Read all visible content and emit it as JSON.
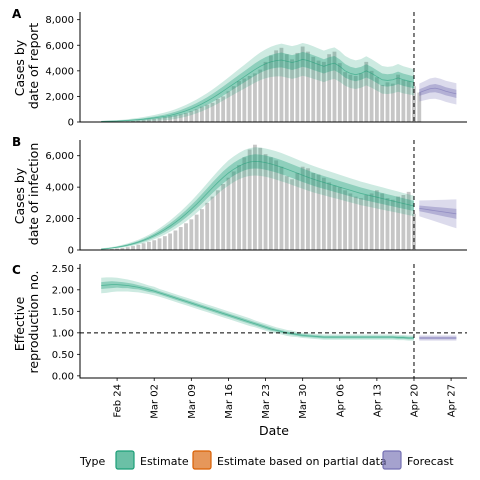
{
  "chart_data": [
    {
      "panel": "A",
      "type": "bar",
      "ylabel": [
        "Cases by",
        "date of report"
      ],
      "ylim": [
        0,
        8600
      ],
      "yticks": [
        0,
        2000,
        4000,
        6000,
        8000
      ],
      "ytick_labels": [
        "0",
        "2,000",
        "4,000",
        "6,000",
        "8,000"
      ],
      "bar_start_date": "2020-02-21",
      "bar_values": [
        5,
        10,
        15,
        25,
        40,
        60,
        80,
        110,
        150,
        200,
        250,
        300,
        380,
        450,
        520,
        600,
        700,
        850,
        1000,
        1200,
        1350,
        1500,
        1800,
        2000,
        2400,
        2800,
        3200,
        3400,
        3600,
        3800,
        4100,
        4700,
        5200,
        5600,
        5800,
        5300,
        4900,
        5400,
        5900,
        5500,
        5100,
        4800,
        4700,
        5300,
        5500,
        4600,
        3900,
        3700,
        3600,
        3800,
        4700,
        4000,
        3500,
        2900,
        3100,
        3000,
        3700,
        3300,
        3200,
        2800,
        2300
      ],
      "estimate": {
        "start_date": "2020-02-21",
        "median": [
          50,
          60,
          70,
          80,
          100,
          120,
          150,
          180,
          220,
          270,
          320,
          380,
          440,
          520,
          620,
          740,
          880,
          1040,
          1220,
          1420,
          1640,
          1880,
          2140,
          2420,
          2700,
          2980,
          3260,
          3540,
          3820,
          4100,
          4350,
          4550,
          4700,
          4800,
          4850,
          4750,
          4650,
          4750,
          4900,
          4800,
          4650,
          4500,
          4350,
          4500,
          4600,
          4350,
          4000,
          3800,
          3700,
          3800,
          4000,
          3800,
          3550,
          3300,
          3250,
          3300,
          3450,
          3300,
          3200,
          3100
        ],
        "inner_width": [
          20,
          25,
          30,
          35,
          40,
          45,
          55,
          65,
          75,
          90,
          100,
          120,
          140,
          160,
          180,
          200,
          220,
          240,
          260,
          280,
          300,
          320,
          340,
          360,
          380,
          400,
          420,
          440,
          460,
          480,
          500,
          520,
          540,
          560,
          580,
          580,
          580,
          580,
          580,
          580,
          580,
          570,
          560,
          560,
          560,
          550,
          530,
          520,
          510,
          510,
          520,
          510,
          500,
          490,
          480,
          480,
          490,
          480,
          470,
          460
        ],
        "outer_width": [
          40,
          50,
          60,
          70,
          80,
          100,
          120,
          140,
          170,
          200,
          230,
          260,
          300,
          340,
          380,
          420,
          460,
          500,
          540,
          580,
          620,
          660,
          700,
          740,
          780,
          830,
          880,
          930,
          980,
          1030,
          1080,
          1130,
          1180,
          1230,
          1280,
          1280,
          1280,
          1280,
          1280,
          1280,
          1270,
          1250,
          1230,
          1230,
          1230,
          1210,
          1170,
          1140,
          1120,
          1120,
          1140,
          1120,
          1100,
          1080,
          1060,
          1060,
          1080,
          1060,
          1040,
          1020
        ]
      },
      "forecast": {
        "start_date": "2020-04-21",
        "median": [
          2300,
          2450,
          2600,
          2650,
          2550,
          2400,
          2300,
          2200
        ],
        "inner_width": [
          260,
          280,
          300,
          320,
          320,
          320,
          320,
          320
        ],
        "outer_width": [
          700,
          750,
          800,
          830,
          830,
          830,
          830,
          830
        ]
      }
    },
    {
      "panel": "B",
      "type": "bar",
      "ylabel": [
        "Cases by",
        "date of infection"
      ],
      "ylim": [
        0,
        7000
      ],
      "yticks": [
        0,
        2000,
        4000,
        6000
      ],
      "ytick_labels": [
        "0",
        "2,000",
        "4,000",
        "6,000"
      ],
      "bar_start_date": "2020-02-21",
      "bar_values": [
        20,
        40,
        60,
        90,
        130,
        180,
        250,
        330,
        430,
        520,
        620,
        740,
        880,
        1050,
        1240,
        1460,
        1700,
        1950,
        2250,
        2600,
        3000,
        3400,
        3800,
        4200,
        4600,
        5000,
        5400,
        5900,
        6400,
        6700,
        6500,
        6100,
        5900,
        5700,
        5300,
        4700,
        4500,
        4900,
        5300,
        5200,
        4900,
        4800,
        4600,
        4300,
        4100,
        4000,
        3800,
        3600,
        3400,
        3300,
        3500,
        3600,
        3800,
        3600,
        3300,
        3200,
        3400,
        3500,
        3700,
        2300
      ],
      "estimate": {
        "start_date": "2020-02-21",
        "median": [
          60,
          90,
          130,
          180,
          240,
          310,
          400,
          500,
          620,
          760,
          920,
          1100,
          1300,
          1520,
          1760,
          2020,
          2300,
          2600,
          2920,
          3260,
          3610,
          3960,
          4300,
          4620,
          4900,
          5140,
          5340,
          5500,
          5600,
          5640,
          5620,
          5560,
          5480,
          5380,
          5270,
          5150,
          5020,
          4890,
          4760,
          4630,
          4510,
          4400,
          4300,
          4200,
          4100,
          4000,
          3900,
          3800,
          3700,
          3600,
          3520,
          3440,
          3360,
          3280,
          3200,
          3120,
          3040,
          2960,
          2880,
          2800
        ],
        "inner_width": [
          20,
          25,
          30,
          35,
          45,
          55,
          65,
          75,
          90,
          105,
          120,
          140,
          160,
          180,
          200,
          220,
          240,
          260,
          280,
          300,
          320,
          340,
          360,
          380,
          400,
          410,
          420,
          430,
          440,
          450,
          450,
          450,
          450,
          450,
          450,
          445,
          440,
          435,
          430,
          425,
          420,
          415,
          410,
          405,
          400,
          395,
          390,
          385,
          380,
          375,
          370,
          365,
          360,
          355,
          350,
          345,
          340,
          335,
          330,
          325
        ],
        "outer_width": [
          40,
          50,
          60,
          70,
          90,
          110,
          130,
          150,
          180,
          210,
          240,
          280,
          320,
          360,
          400,
          440,
          480,
          520,
          560,
          600,
          640,
          680,
          720,
          760,
          800,
          820,
          840,
          860,
          880,
          900,
          900,
          900,
          900,
          900,
          900,
          890,
          880,
          870,
          860,
          850,
          840,
          830,
          820,
          810,
          800,
          790,
          780,
          770,
          760,
          750,
          740,
          730,
          720,
          710,
          700,
          690,
          680,
          670,
          660,
          650
        ]
      },
      "forecast": {
        "start_date": "2020-04-21",
        "median": [
          2650,
          2600,
          2550,
          2500,
          2450,
          2400,
          2350,
          2300
        ],
        "inner_width": [
          180,
          200,
          220,
          240,
          260,
          280,
          300,
          320
        ],
        "outer_width": [
          500,
          560,
          620,
          680,
          740,
          800,
          860,
          920
        ]
      }
    },
    {
      "panel": "C",
      "type": "line",
      "ylabel": [
        "Effective",
        "reproduction no."
      ],
      "ylim": [
        -0.05,
        2.6
      ],
      "yticks": [
        0.0,
        0.5,
        1.0,
        1.5,
        2.0,
        2.5
      ],
      "ytick_labels": [
        "0.00",
        "0.50",
        "1.00",
        "1.50",
        "2.00",
        "2.50"
      ],
      "reference_line": 1.0,
      "estimate": {
        "start_date": "2020-02-21",
        "median": [
          2.1,
          2.11,
          2.12,
          2.12,
          2.11,
          2.1,
          2.08,
          2.06,
          2.03,
          2.0,
          1.97,
          1.93,
          1.89,
          1.85,
          1.81,
          1.77,
          1.73,
          1.69,
          1.65,
          1.61,
          1.57,
          1.53,
          1.49,
          1.45,
          1.41,
          1.37,
          1.33,
          1.29,
          1.25,
          1.21,
          1.17,
          1.13,
          1.09,
          1.06,
          1.03,
          1.0,
          0.98,
          0.96,
          0.94,
          0.93,
          0.92,
          0.91,
          0.9,
          0.9,
          0.9,
          0.9,
          0.9,
          0.9,
          0.9,
          0.9,
          0.9,
          0.9,
          0.9,
          0.9,
          0.9,
          0.9,
          0.89,
          0.89,
          0.88,
          0.88
        ],
        "inner_width": [
          0.08,
          0.08,
          0.08,
          0.07,
          0.07,
          0.06,
          0.06,
          0.05,
          0.05,
          0.05,
          0.04,
          0.04,
          0.04,
          0.04,
          0.04,
          0.04,
          0.04,
          0.04,
          0.04,
          0.04,
          0.04,
          0.04,
          0.04,
          0.04,
          0.04,
          0.04,
          0.04,
          0.04,
          0.04,
          0.04,
          0.04,
          0.04,
          0.04,
          0.03,
          0.03,
          0.03,
          0.03,
          0.03,
          0.03,
          0.03,
          0.03,
          0.03,
          0.03,
          0.03,
          0.03,
          0.03,
          0.03,
          0.03,
          0.03,
          0.03,
          0.03,
          0.03,
          0.03,
          0.03,
          0.03,
          0.03,
          0.03,
          0.03,
          0.03,
          0.03
        ],
        "outer_width": [
          0.18,
          0.18,
          0.17,
          0.16,
          0.15,
          0.14,
          0.13,
          0.12,
          0.11,
          0.1,
          0.1,
          0.09,
          0.09,
          0.09,
          0.09,
          0.09,
          0.09,
          0.09,
          0.09,
          0.09,
          0.09,
          0.09,
          0.09,
          0.09,
          0.09,
          0.09,
          0.09,
          0.09,
          0.09,
          0.08,
          0.08,
          0.08,
          0.08,
          0.07,
          0.07,
          0.07,
          0.07,
          0.06,
          0.06,
          0.06,
          0.06,
          0.06,
          0.06,
          0.06,
          0.06,
          0.06,
          0.06,
          0.06,
          0.06,
          0.06,
          0.06,
          0.06,
          0.06,
          0.06,
          0.06,
          0.06,
          0.06,
          0.06,
          0.06,
          0.06
        ]
      },
      "forecast": {
        "start_date": "2020-04-21",
        "median": [
          0.88,
          0.88,
          0.88,
          0.88,
          0.88,
          0.88,
          0.88,
          0.88
        ],
        "inner_width": [
          0.03,
          0.03,
          0.03,
          0.03,
          0.03,
          0.03,
          0.03,
          0.03
        ],
        "outer_width": [
          0.06,
          0.06,
          0.06,
          0.06,
          0.06,
          0.06,
          0.06,
          0.06
        ]
      }
    }
  ],
  "x_axis": {
    "title": "Date",
    "range": [
      "2020-02-17",
      "2020-04-30"
    ],
    "ticks": [
      "2020-02-24",
      "2020-03-02",
      "2020-03-09",
      "2020-03-16",
      "2020-03-23",
      "2020-03-30",
      "2020-04-06",
      "2020-04-13",
      "2020-04-20",
      "2020-04-27"
    ],
    "tick_labels": [
      "Feb 24",
      "Mar 02",
      "Mar 09",
      "Mar 16",
      "Mar 23",
      "Mar 30",
      "Apr 06",
      "Apr 13",
      "Apr 20",
      "Apr 27"
    ],
    "dashed_line_date": "2020-04-20"
  },
  "colors": {
    "estimate": "#1b9e77",
    "partial": "#d95f02",
    "forecast": "#7570b3",
    "bars": "#c6c6c6"
  },
  "legend": {
    "title": "Type",
    "position": "bottom",
    "items": [
      "Estimate",
      "Estimate based on partial data",
      "Forecast"
    ]
  }
}
